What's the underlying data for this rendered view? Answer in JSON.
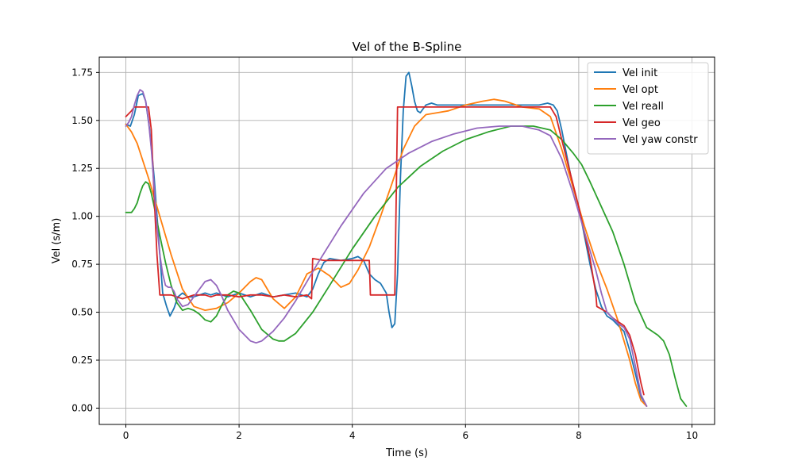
{
  "chart_data": {
    "type": "line",
    "title": "Vel of the B-Spline",
    "xlabel": "Time (s)",
    "ylabel": "Vel (s/m)",
    "xlim": [
      -0.47,
      10.4
    ],
    "ylim": [
      -0.085,
      1.83
    ],
    "xticks": [
      0,
      2,
      4,
      6,
      8,
      10
    ],
    "yticks": [
      0.0,
      0.25,
      0.5,
      0.75,
      1.0,
      1.25,
      1.5,
      1.75
    ],
    "xtick_labels": [
      "0",
      "2",
      "4",
      "6",
      "8",
      "10"
    ],
    "ytick_labels": [
      "0.00",
      "0.25",
      "0.50",
      "0.75",
      "1.00",
      "1.25",
      "1.50",
      "1.75"
    ],
    "grid": true,
    "legend_position": "top-right",
    "series": [
      {
        "name": "Vel init",
        "color": "#1f77b4",
        "x": [
          0,
          0.08,
          0.15,
          0.22,
          0.3,
          0.35,
          0.42,
          0.5,
          0.58,
          0.65,
          0.72,
          0.78,
          0.85,
          0.92,
          1.0,
          1.1,
          1.2,
          1.3,
          1.4,
          1.5,
          1.6,
          1.8,
          2.0,
          2.2,
          2.4,
          2.6,
          2.8,
          3.0,
          3.2,
          3.3,
          3.4,
          3.5,
          3.6,
          3.8,
          4.0,
          4.1,
          4.2,
          4.3,
          4.4,
          4.5,
          4.6,
          4.65,
          4.7,
          4.75,
          4.8,
          4.85,
          4.9,
          4.95,
          5.0,
          5.05,
          5.1,
          5.15,
          5.2,
          5.3,
          5.4,
          5.5,
          5.7,
          6.0,
          6.5,
          7.0,
          7.3,
          7.45,
          7.55,
          7.62,
          7.7,
          7.8,
          7.9,
          8.0,
          8.1,
          8.2,
          8.3,
          8.4,
          8.5,
          8.6,
          8.7,
          8.8,
          8.9,
          9.0,
          9.1,
          9.2
        ],
        "y": [
          1.48,
          1.47,
          1.53,
          1.63,
          1.64,
          1.6,
          1.45,
          1.2,
          0.88,
          0.6,
          0.53,
          0.48,
          0.52,
          0.58,
          0.6,
          0.58,
          0.58,
          0.59,
          0.6,
          0.59,
          0.6,
          0.58,
          0.6,
          0.58,
          0.6,
          0.58,
          0.59,
          0.6,
          0.58,
          0.62,
          0.7,
          0.76,
          0.78,
          0.77,
          0.78,
          0.79,
          0.77,
          0.7,
          0.67,
          0.65,
          0.6,
          0.5,
          0.42,
          0.44,
          0.7,
          1.2,
          1.55,
          1.73,
          1.75,
          1.68,
          1.6,
          1.55,
          1.54,
          1.58,
          1.59,
          1.58,
          1.58,
          1.58,
          1.58,
          1.58,
          1.58,
          1.59,
          1.58,
          1.55,
          1.45,
          1.3,
          1.15,
          1.05,
          0.9,
          0.75,
          0.62,
          0.53,
          0.48,
          0.46,
          0.43,
          0.4,
          0.3,
          0.18,
          0.06,
          0.01
        ]
      },
      {
        "name": "Vel opt",
        "color": "#ff7f0e",
        "x": [
          0,
          0.1,
          0.2,
          0.3,
          0.4,
          0.5,
          0.6,
          0.8,
          1.0,
          1.2,
          1.4,
          1.6,
          1.8,
          2.0,
          2.2,
          2.3,
          2.4,
          2.6,
          2.8,
          3.0,
          3.2,
          3.4,
          3.6,
          3.8,
          3.95,
          4.1,
          4.3,
          4.5,
          4.7,
          4.9,
          5.1,
          5.3,
          5.5,
          5.7,
          6.0,
          6.3,
          6.5,
          6.7,
          7.0,
          7.3,
          7.5,
          7.7,
          7.9,
          8.1,
          8.3,
          8.5,
          8.7,
          8.9,
          9.0,
          9.1,
          9.2
        ],
        "y": [
          1.48,
          1.44,
          1.38,
          1.29,
          1.2,
          1.1,
          1.0,
          0.8,
          0.62,
          0.53,
          0.51,
          0.52,
          0.55,
          0.6,
          0.66,
          0.68,
          0.67,
          0.57,
          0.52,
          0.58,
          0.7,
          0.73,
          0.69,
          0.63,
          0.65,
          0.72,
          0.84,
          1.0,
          1.17,
          1.35,
          1.47,
          1.53,
          1.54,
          1.55,
          1.58,
          1.6,
          1.61,
          1.6,
          1.57,
          1.56,
          1.52,
          1.35,
          1.15,
          0.95,
          0.77,
          0.62,
          0.45,
          0.25,
          0.13,
          0.04,
          0.01
        ]
      },
      {
        "name": "Vel reall",
        "color": "#2ca02c",
        "x": [
          0,
          0.05,
          0.1,
          0.15,
          0.2,
          0.25,
          0.3,
          0.35,
          0.4,
          0.45,
          0.5,
          0.6,
          0.7,
          0.8,
          0.9,
          1.0,
          1.1,
          1.2,
          1.3,
          1.4,
          1.5,
          1.6,
          1.7,
          1.8,
          1.9,
          2.0,
          2.2,
          2.4,
          2.6,
          2.7,
          2.8,
          3.0,
          3.3,
          3.6,
          4.0,
          4.4,
          4.8,
          5.2,
          5.6,
          6.0,
          6.4,
          6.8,
          7.2,
          7.5,
          7.7,
          7.9,
          8.05,
          8.2,
          8.4,
          8.6,
          8.8,
          9.0,
          9.2,
          9.4,
          9.5,
          9.6,
          9.7,
          9.8,
          9.9
        ],
        "y": [
          1.02,
          1.02,
          1.02,
          1.04,
          1.07,
          1.12,
          1.16,
          1.18,
          1.17,
          1.12,
          1.05,
          0.9,
          0.76,
          0.64,
          0.55,
          0.51,
          0.52,
          0.51,
          0.49,
          0.46,
          0.45,
          0.48,
          0.54,
          0.59,
          0.61,
          0.6,
          0.51,
          0.41,
          0.36,
          0.35,
          0.35,
          0.39,
          0.5,
          0.64,
          0.83,
          1.0,
          1.15,
          1.26,
          1.34,
          1.4,
          1.44,
          1.47,
          1.47,
          1.45,
          1.4,
          1.33,
          1.27,
          1.18,
          1.05,
          0.92,
          0.75,
          0.55,
          0.42,
          0.38,
          0.35,
          0.28,
          0.16,
          0.05,
          0.01
        ]
      },
      {
        "name": "Vel geo",
        "color": "#d62728",
        "x": [
          0,
          0.1,
          0.15,
          0.2,
          0.4,
          0.45,
          0.5,
          0.55,
          0.6,
          0.8,
          0.9,
          1.0,
          1.1,
          1.2,
          1.4,
          1.5,
          1.6,
          1.8,
          2.0,
          2.2,
          2.4,
          2.6,
          2.8,
          3.0,
          3.2,
          3.28,
          3.3,
          3.5,
          3.8,
          4.0,
          4.2,
          4.3,
          4.32,
          4.5,
          4.7,
          4.75,
          4.8,
          5.0,
          6.0,
          7.0,
          7.5,
          7.6,
          7.7,
          8.0,
          8.2,
          8.3,
          8.32,
          8.5,
          8.6,
          8.7,
          8.8,
          8.9,
          9.0,
          9.1,
          9.15
        ],
        "y": [
          1.52,
          1.55,
          1.57,
          1.57,
          1.57,
          1.45,
          1.1,
          0.8,
          0.59,
          0.59,
          0.58,
          0.57,
          0.58,
          0.59,
          0.59,
          0.58,
          0.59,
          0.59,
          0.58,
          0.59,
          0.59,
          0.58,
          0.59,
          0.58,
          0.59,
          0.57,
          0.78,
          0.77,
          0.77,
          0.77,
          0.77,
          0.77,
          0.59,
          0.59,
          0.59,
          0.59,
          1.57,
          1.57,
          1.57,
          1.57,
          1.57,
          1.52,
          1.4,
          1.05,
          0.78,
          0.6,
          0.53,
          0.5,
          0.47,
          0.45,
          0.43,
          0.38,
          0.28,
          0.13,
          0.07
        ]
      },
      {
        "name": "Vel yaw constr",
        "color": "#9467bd",
        "x": [
          0,
          0.05,
          0.1,
          0.15,
          0.2,
          0.25,
          0.3,
          0.35,
          0.4,
          0.45,
          0.5,
          0.55,
          0.6,
          0.65,
          0.7,
          0.75,
          0.8,
          0.85,
          0.9,
          1.0,
          1.1,
          1.2,
          1.3,
          1.4,
          1.5,
          1.6,
          1.7,
          1.8,
          2.0,
          2.2,
          2.3,
          2.4,
          2.6,
          2.8,
          3.0,
          3.4,
          3.8,
          4.2,
          4.6,
          5.0,
          5.4,
          5.8,
          6.2,
          6.6,
          7.0,
          7.3,
          7.5,
          7.7,
          7.9,
          8.1,
          8.3,
          8.4,
          8.5,
          8.6,
          8.7,
          8.8,
          8.9,
          9.0,
          9.1,
          9.2
        ],
        "y": [
          1.47,
          1.49,
          1.52,
          1.58,
          1.63,
          1.66,
          1.65,
          1.6,
          1.5,
          1.35,
          1.15,
          0.95,
          0.8,
          0.7,
          0.64,
          0.63,
          0.63,
          0.61,
          0.57,
          0.53,
          0.54,
          0.58,
          0.62,
          0.66,
          0.67,
          0.64,
          0.58,
          0.51,
          0.41,
          0.35,
          0.34,
          0.35,
          0.4,
          0.47,
          0.56,
          0.76,
          0.95,
          1.12,
          1.25,
          1.33,
          1.39,
          1.43,
          1.46,
          1.47,
          1.47,
          1.45,
          1.42,
          1.3,
          1.12,
          0.92,
          0.72,
          0.6,
          0.5,
          0.47,
          0.44,
          0.42,
          0.36,
          0.22,
          0.07,
          0.01
        ]
      }
    ]
  }
}
